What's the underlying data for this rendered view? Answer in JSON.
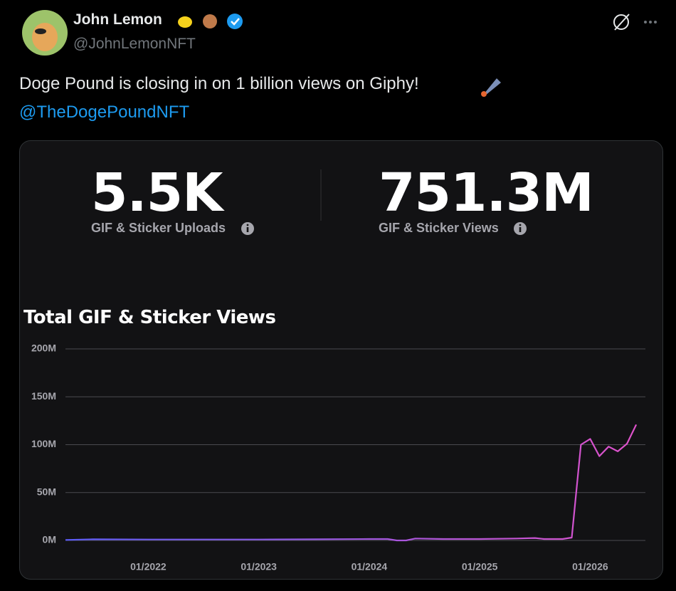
{
  "author": {
    "name": "John Lemon",
    "handle": "@JohnLemonNFT"
  },
  "tweet": {
    "text": "Doge Pound is closing in on 1 billion views on Giphy!",
    "mention": "@TheDogePoundNFT"
  },
  "stats": [
    {
      "value": "5.5K",
      "label": "GIF & Sticker Uploads"
    },
    {
      "value": "751.3M",
      "label": "GIF & Sticker Views"
    }
  ],
  "chart_data": {
    "type": "line",
    "title": "Total GIF & Sticker Views",
    "x": [
      "04/2021",
      "07/2021",
      "01/2022",
      "07/2022",
      "01/2023",
      "07/2023",
      "01/2024",
      "03/2024",
      "04/2024",
      "05/2024",
      "06/2024",
      "09/2024",
      "01/2025",
      "05/2025",
      "07/2025",
      "08/2025",
      "10/2025",
      "11/2025",
      "12/2025",
      "01/2026",
      "02/2026",
      "03/2026",
      "04/2026",
      "05/2026",
      "06/2026"
    ],
    "values": [
      500000,
      1200000,
      1000000,
      1000000,
      1000000,
      1200000,
      1500000,
      1500000,
      0,
      0,
      2000000,
      1500000,
      1500000,
      2000000,
      2500000,
      1500000,
      1500000,
      3000000,
      100000000,
      106000000,
      88000000,
      98000000,
      93000000,
      101000000,
      121000000
    ],
    "colors": [
      "#5b5cf6",
      "#e152c9"
    ],
    "xlim": [
      "04/2021",
      "07/2026"
    ],
    "xticks": [
      "01/2022",
      "01/2023",
      "01/2024",
      "01/2025",
      "01/2026"
    ],
    "ylim": [
      0,
      200000000
    ],
    "yticks": [
      {
        "value": 0,
        "label": "0M"
      },
      {
        "value": 50000000,
        "label": "50M"
      },
      {
        "value": 100000000,
        "label": "100M"
      },
      {
        "value": 150000000,
        "label": "150M"
      },
      {
        "value": 200000000,
        "label": "200M"
      }
    ],
    "grid": true
  }
}
